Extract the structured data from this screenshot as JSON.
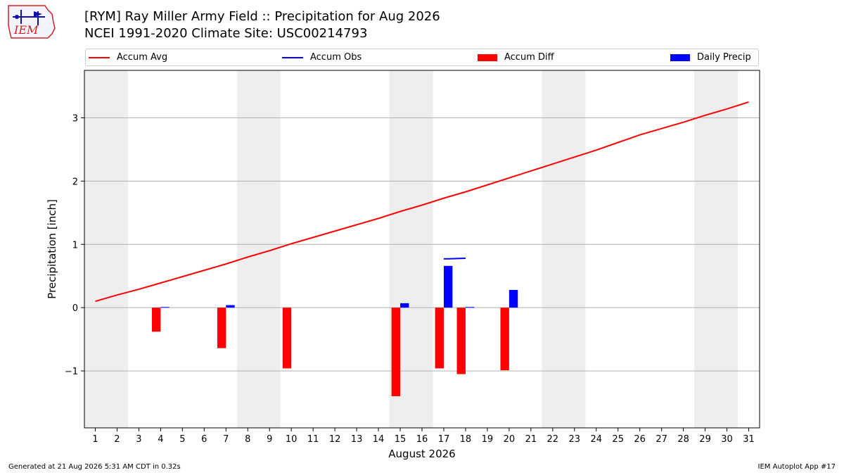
{
  "header": {
    "title_line1": "[RYM] Ray Miller Army Field :: Precipitation for Aug 2026",
    "title_line2": "NCEI 1991-2020 Climate Site: USC00214793"
  },
  "logo": {
    "text": "IEM",
    "color": "#cc2222"
  },
  "legend": [
    {
      "label": "Accum Avg",
      "kind": "line",
      "color": "#ff0000"
    },
    {
      "label": "Accum Obs",
      "kind": "line",
      "color": "#0000ff"
    },
    {
      "label": "Accum Diff",
      "kind": "bar",
      "color": "#ff0000"
    },
    {
      "label": "Daily Precip",
      "kind": "bar",
      "color": "#0000ff"
    }
  ],
  "chart_data": {
    "type": "bar",
    "xlabel": "August 2026",
    "ylabel": "Precipitation [inch]",
    "xlim": [
      0.5,
      31.5
    ],
    "ylim": [
      -1.9,
      3.75
    ],
    "yticks": [
      -1,
      0,
      1,
      2,
      3
    ],
    "ytick_labels": [
      "−1",
      "0",
      "1",
      "2",
      "3"
    ],
    "xticks": [
      1,
      2,
      3,
      4,
      5,
      6,
      7,
      8,
      9,
      10,
      11,
      12,
      13,
      14,
      15,
      16,
      17,
      18,
      19,
      20,
      21,
      22,
      23,
      24,
      25,
      26,
      27,
      28,
      29,
      30,
      31
    ],
    "weekend_shading": [
      [
        0.5,
        2.5
      ],
      [
        7.5,
        9.5
      ],
      [
        14.5,
        16.5
      ],
      [
        21.5,
        23.5
      ],
      [
        28.5,
        30.5
      ]
    ],
    "grid": true,
    "series": [
      {
        "name": "Accum Avg",
        "type": "line",
        "color": "#ff0000",
        "x": [
          1,
          2,
          3,
          4,
          5,
          6,
          7,
          8,
          9,
          10,
          11,
          12,
          13,
          14,
          15,
          16,
          17,
          18,
          19,
          20,
          21,
          22,
          23,
          24,
          25,
          26,
          27,
          28,
          29,
          30,
          31
        ],
        "values": [
          0.1,
          0.2,
          0.29,
          0.39,
          0.49,
          0.59,
          0.69,
          0.8,
          0.9,
          1.01,
          1.11,
          1.21,
          1.31,
          1.41,
          1.52,
          1.62,
          1.73,
          1.83,
          1.94,
          2.05,
          2.16,
          2.27,
          2.38,
          2.49,
          2.61,
          2.73,
          2.83,
          2.93,
          3.04,
          3.14,
          3.25
        ]
      },
      {
        "name": "Accum Obs",
        "type": "line",
        "color": "#0000ff",
        "x": [
          17,
          18
        ],
        "values": [
          0.77,
          0.78
        ]
      },
      {
        "name": "Accum Diff",
        "type": "bar",
        "color": "#ff0000",
        "x": [
          4,
          7,
          10,
          15,
          17,
          18,
          20
        ],
        "values": [
          -0.38,
          -0.64,
          -0.96,
          -1.4,
          -0.96,
          -1.05,
          -0.99
        ]
      },
      {
        "name": "Daily Precip",
        "type": "bar",
        "color": "#0000ff",
        "x": [
          4,
          7,
          15,
          17,
          18,
          20
        ],
        "values": [
          0.01,
          0.04,
          0.07,
          0.66,
          0.01,
          0.28
        ]
      }
    ]
  },
  "footer": {
    "left": "Generated at 21 Aug 2026 5:31 AM CDT in 0.32s",
    "right": "IEM Autoplot App #17"
  }
}
